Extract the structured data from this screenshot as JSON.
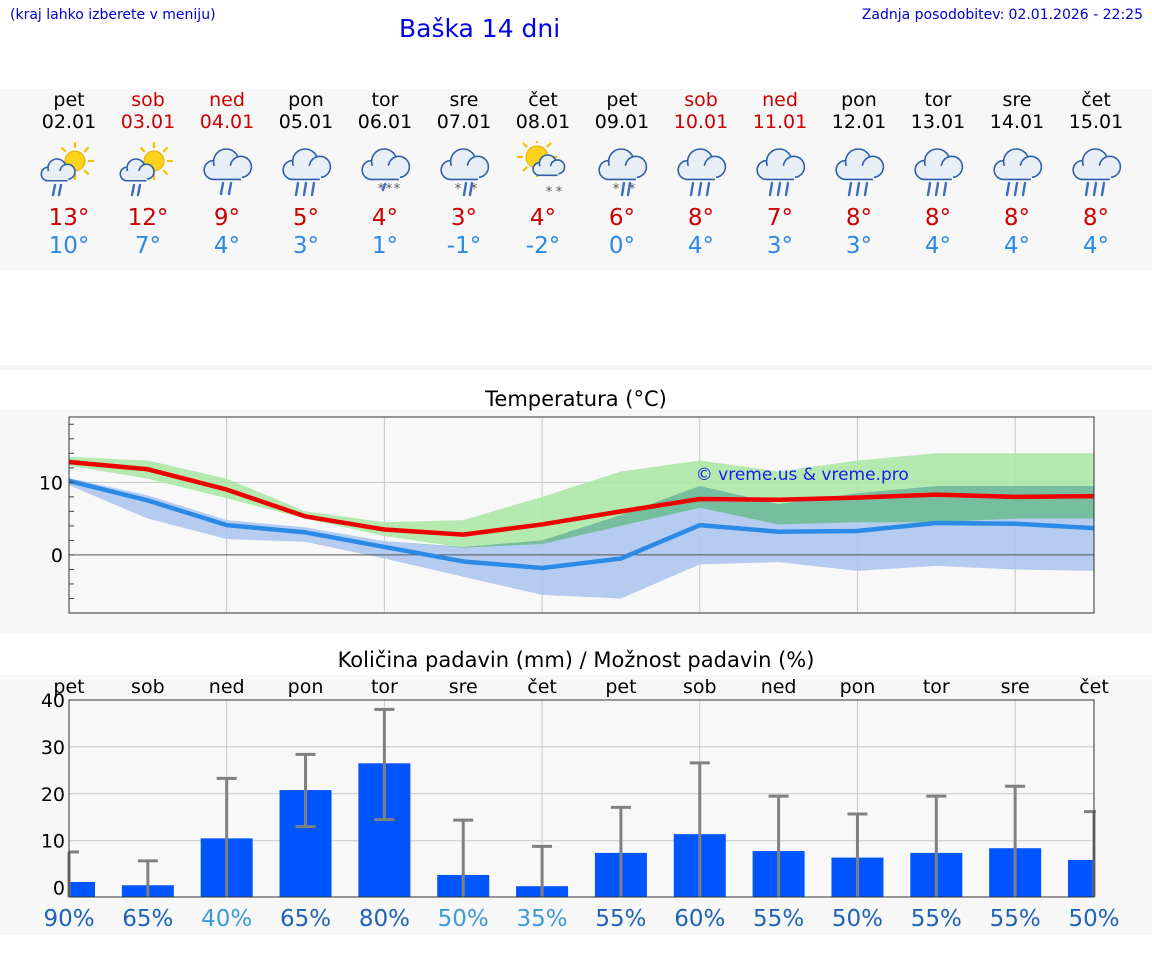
{
  "header": {
    "hint": "(kraj lahko izberete v meniju)",
    "title": "Baška 14 dni",
    "updated_label": "Zadnja posodobitev:",
    "updated_value": "02.01.2026 - 22:25"
  },
  "colors": {
    "weekday": "#000000",
    "weekend": "#cc0000",
    "tmax": "#cc0000",
    "tmin": "#2a8ae6",
    "temp_max_line": "#ee0000",
    "temp_min_line": "#2a8ae6",
    "max_band": "#a8e6a3",
    "min_band": "#a9c3ef",
    "bar": "#0055ff",
    "errorbar": "#808080"
  },
  "days": [
    {
      "name": "pet",
      "date": "02.01",
      "weekend": false,
      "icon": "sun-cloud-rain-icon",
      "tmax": "13°",
      "tmin": "10°"
    },
    {
      "name": "sob",
      "date": "03.01",
      "weekend": true,
      "icon": "sun-cloud-rain-icon",
      "tmax": "12°",
      "tmin": "7°"
    },
    {
      "name": "ned",
      "date": "04.01",
      "weekend": true,
      "icon": "cloud-rain-icon",
      "tmax": "9°",
      "tmin": "4°"
    },
    {
      "name": "pon",
      "date": "05.01",
      "weekend": false,
      "icon": "cloud-heavy-rain-icon",
      "tmax": "5°",
      "tmin": "3°"
    },
    {
      "name": "tor",
      "date": "06.01",
      "weekend": false,
      "icon": "cloud-snow-icon",
      "tmax": "4°",
      "tmin": "1°"
    },
    {
      "name": "sre",
      "date": "07.01",
      "weekend": false,
      "icon": "cloud-sleet-icon",
      "tmax": "3°",
      "tmin": "-1°"
    },
    {
      "name": "čet",
      "date": "08.01",
      "weekend": false,
      "icon": "sun-cloud-snow-icon",
      "tmax": "4°",
      "tmin": "-2°"
    },
    {
      "name": "pet",
      "date": "09.01",
      "weekend": false,
      "icon": "cloud-sleet-icon",
      "tmax": "6°",
      "tmin": "0°"
    },
    {
      "name": "sob",
      "date": "10.01",
      "weekend": true,
      "icon": "cloud-heavy-rain-icon",
      "tmax": "8°",
      "tmin": "4°"
    },
    {
      "name": "ned",
      "date": "11.01",
      "weekend": true,
      "icon": "cloud-heavy-rain-icon",
      "tmax": "7°",
      "tmin": "3°"
    },
    {
      "name": "pon",
      "date": "12.01",
      "weekend": false,
      "icon": "cloud-heavy-rain-icon",
      "tmax": "8°",
      "tmin": "3°"
    },
    {
      "name": "tor",
      "date": "13.01",
      "weekend": false,
      "icon": "cloud-heavy-rain-icon",
      "tmax": "8°",
      "tmin": "4°"
    },
    {
      "name": "sre",
      "date": "14.01",
      "weekend": false,
      "icon": "cloud-heavy-rain-icon",
      "tmax": "8°",
      "tmin": "4°"
    },
    {
      "name": "čet",
      "date": "15.01",
      "weekend": false,
      "icon": "cloud-heavy-rain-icon",
      "tmax": "8°",
      "tmin": "4°"
    }
  ],
  "chart_data": [
    {
      "type": "line",
      "title": "Temperatura (°C)",
      "xlabel": "",
      "ylabel": "",
      "x": [
        0,
        1,
        2,
        3,
        4,
        5,
        6,
        7,
        8,
        9,
        10,
        11,
        12,
        13
      ],
      "ylim": [
        -8,
        19
      ],
      "ytick_labels": [
        "10",
        "0"
      ],
      "ytick_values": [
        10,
        0
      ],
      "watermark": "© vreme.us & vreme.pro",
      "series": [
        {
          "name": "max",
          "values": [
            12.8,
            11.8,
            9,
            5.3,
            3.5,
            2.8,
            4.2,
            6,
            7.7,
            7.6,
            7.9,
            8.3,
            8,
            8.1
          ]
        },
        {
          "name": "min",
          "values": [
            10.2,
            7.5,
            4.1,
            3.1,
            1.1,
            -0.9,
            -1.8,
            -0.5,
            4.1,
            3.2,
            3.3,
            4.4,
            4.3,
            3.7
          ]
        },
        {
          "name": "max_band_upper",
          "values": [
            13.5,
            13,
            10.5,
            6,
            4.5,
            4.8,
            8,
            11.5,
            13,
            11.5,
            13,
            14,
            14,
            14
          ]
        },
        {
          "name": "max_band_lower",
          "values": [
            12.3,
            10.5,
            7.8,
            5,
            2.6,
            1,
            1.5,
            4,
            6.5,
            4.2,
            4.5,
            4.5,
            5,
            5
          ]
        },
        {
          "name": "min_band_upper",
          "values": [
            10.6,
            8.2,
            4.8,
            3.8,
            1.9,
            1.1,
            2,
            5.5,
            9.5,
            7,
            8.5,
            9.5,
            9.5,
            9.5
          ]
        },
        {
          "name": "min_band_lower",
          "values": [
            9.6,
            5,
            2.2,
            1.8,
            -0.5,
            -3,
            -5.5,
            -6,
            -1.3,
            -1,
            -2.2,
            -1.5,
            -2,
            -2.2
          ]
        }
      ],
      "grid": true
    },
    {
      "type": "bar",
      "title": "Količina padavin (mm) / Možnost padavin (%)",
      "xlabel": "",
      "ylabel": "",
      "categories": [
        "pet",
        "sob",
        "ned",
        "pon",
        "tor",
        "sre",
        "čet",
        "pet",
        "sob",
        "ned",
        "pon",
        "tor",
        "sre",
        "čet"
      ],
      "values": [
        1.2,
        0.5,
        10.5,
        20.8,
        26.5,
        2.7,
        0.3,
        7.4,
        11.4,
        7.8,
        6.4,
        7.4,
        8.4,
        5.9
      ],
      "error_high": [
        7.6,
        5.7,
        23.3,
        28.4,
        38,
        14.4,
        8.8,
        17.1,
        26.6,
        19.5,
        15.7,
        19.5,
        21.6,
        16.2
      ],
      "error_low": [
        0,
        0,
        0,
        13,
        14.5,
        0,
        0,
        0,
        0,
        0,
        0,
        0,
        0,
        0
      ],
      "ylim": [
        -2,
        40
      ],
      "ytick_labels": [
        "40",
        "30",
        "20",
        "10",
        "0"
      ],
      "ytick_values": [
        40,
        30,
        20,
        10,
        0
      ],
      "chance_labels": [
        "90%",
        "65%",
        "40%",
        "65%",
        "80%",
        "50%",
        "35%",
        "55%",
        "60%",
        "55%",
        "50%",
        "55%",
        "55%",
        "50%"
      ],
      "chance_colors": [
        "#1f63b8",
        "#1f63b8",
        "#3c9bd9",
        "#1f63b8",
        "#1f63b8",
        "#3c9bd9",
        "#3c9bd9",
        "#1f63b8",
        "#1f63b8",
        "#1f63b8",
        "#1f63b8",
        "#1f63b8",
        "#1f63b8",
        "#1f63b8"
      ],
      "grid": true
    }
  ]
}
